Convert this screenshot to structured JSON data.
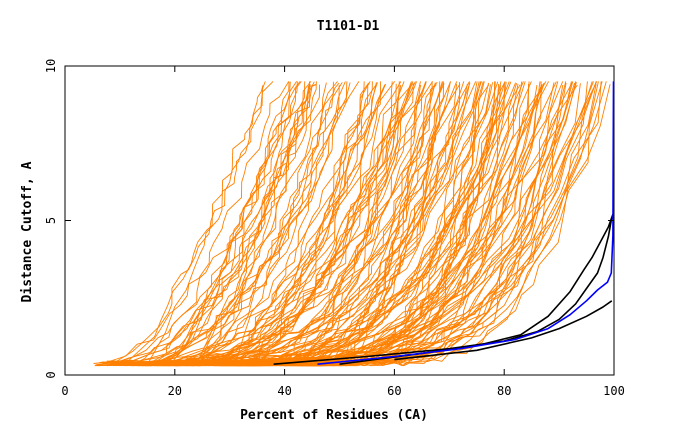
{
  "chart_data": {
    "type": "line",
    "title": "T1101-D1",
    "xlabel": "Percent of Residues (CA)",
    "ylabel": "Distance Cutoff, A",
    "xlim": [
      0,
      100
    ],
    "ylim": [
      0,
      10
    ],
    "x_ticks": [
      "0",
      "20",
      "40",
      "60",
      "80",
      "100"
    ],
    "y_ticks": [
      "0",
      "5",
      "10"
    ],
    "x_tick_values": [
      0,
      20,
      40,
      60,
      80,
      100
    ],
    "y_tick_values": [
      0,
      5,
      10
    ],
    "grid": false,
    "legend": "none",
    "colors": {
      "models": "#ff8000",
      "highlight_black": "#000000",
      "highlight_blue": "#0000ff"
    },
    "highlighted_series": [
      {
        "color": "#000000",
        "points": [
          [
            38,
            0.35
          ],
          [
            55,
            0.6
          ],
          [
            70,
            0.85
          ],
          [
            80,
            1.1
          ],
          [
            86,
            1.4
          ],
          [
            90,
            1.8
          ],
          [
            93,
            2.3
          ],
          [
            95,
            2.8
          ],
          [
            97,
            3.3
          ],
          [
            98,
            3.8
          ],
          [
            99,
            4.5
          ],
          [
            99.6,
            5.1
          ]
        ]
      },
      {
        "color": "#000000",
        "points": [
          [
            50,
            0.35
          ],
          [
            65,
            0.7
          ],
          [
            75,
            0.95
          ],
          [
            83,
            1.3
          ],
          [
            88,
            1.9
          ],
          [
            92,
            2.7
          ],
          [
            94.5,
            3.4
          ],
          [
            96,
            3.8
          ],
          [
            97.5,
            4.3
          ],
          [
            99,
            4.8
          ],
          [
            99.8,
            5.2
          ]
        ]
      },
      {
        "color": "#000000",
        "points": [
          [
            60,
            0.5
          ],
          [
            75,
            0.8
          ],
          [
            85,
            1.2
          ],
          [
            90,
            1.5
          ],
          [
            95,
            1.9
          ],
          [
            98,
            2.2
          ],
          [
            99.6,
            2.4
          ]
        ]
      },
      {
        "color": "#0000ff",
        "points": [
          [
            46,
            0.35
          ],
          [
            60,
            0.6
          ],
          [
            72,
            0.85
          ],
          [
            82,
            1.15
          ],
          [
            88,
            1.5
          ],
          [
            92,
            1.95
          ],
          [
            95,
            2.4
          ],
          [
            97,
            2.75
          ],
          [
            98.8,
            3.0
          ],
          [
            99.5,
            3.3
          ],
          [
            99.8,
            4.5
          ],
          [
            99.9,
            9.5
          ]
        ]
      }
    ]
  }
}
